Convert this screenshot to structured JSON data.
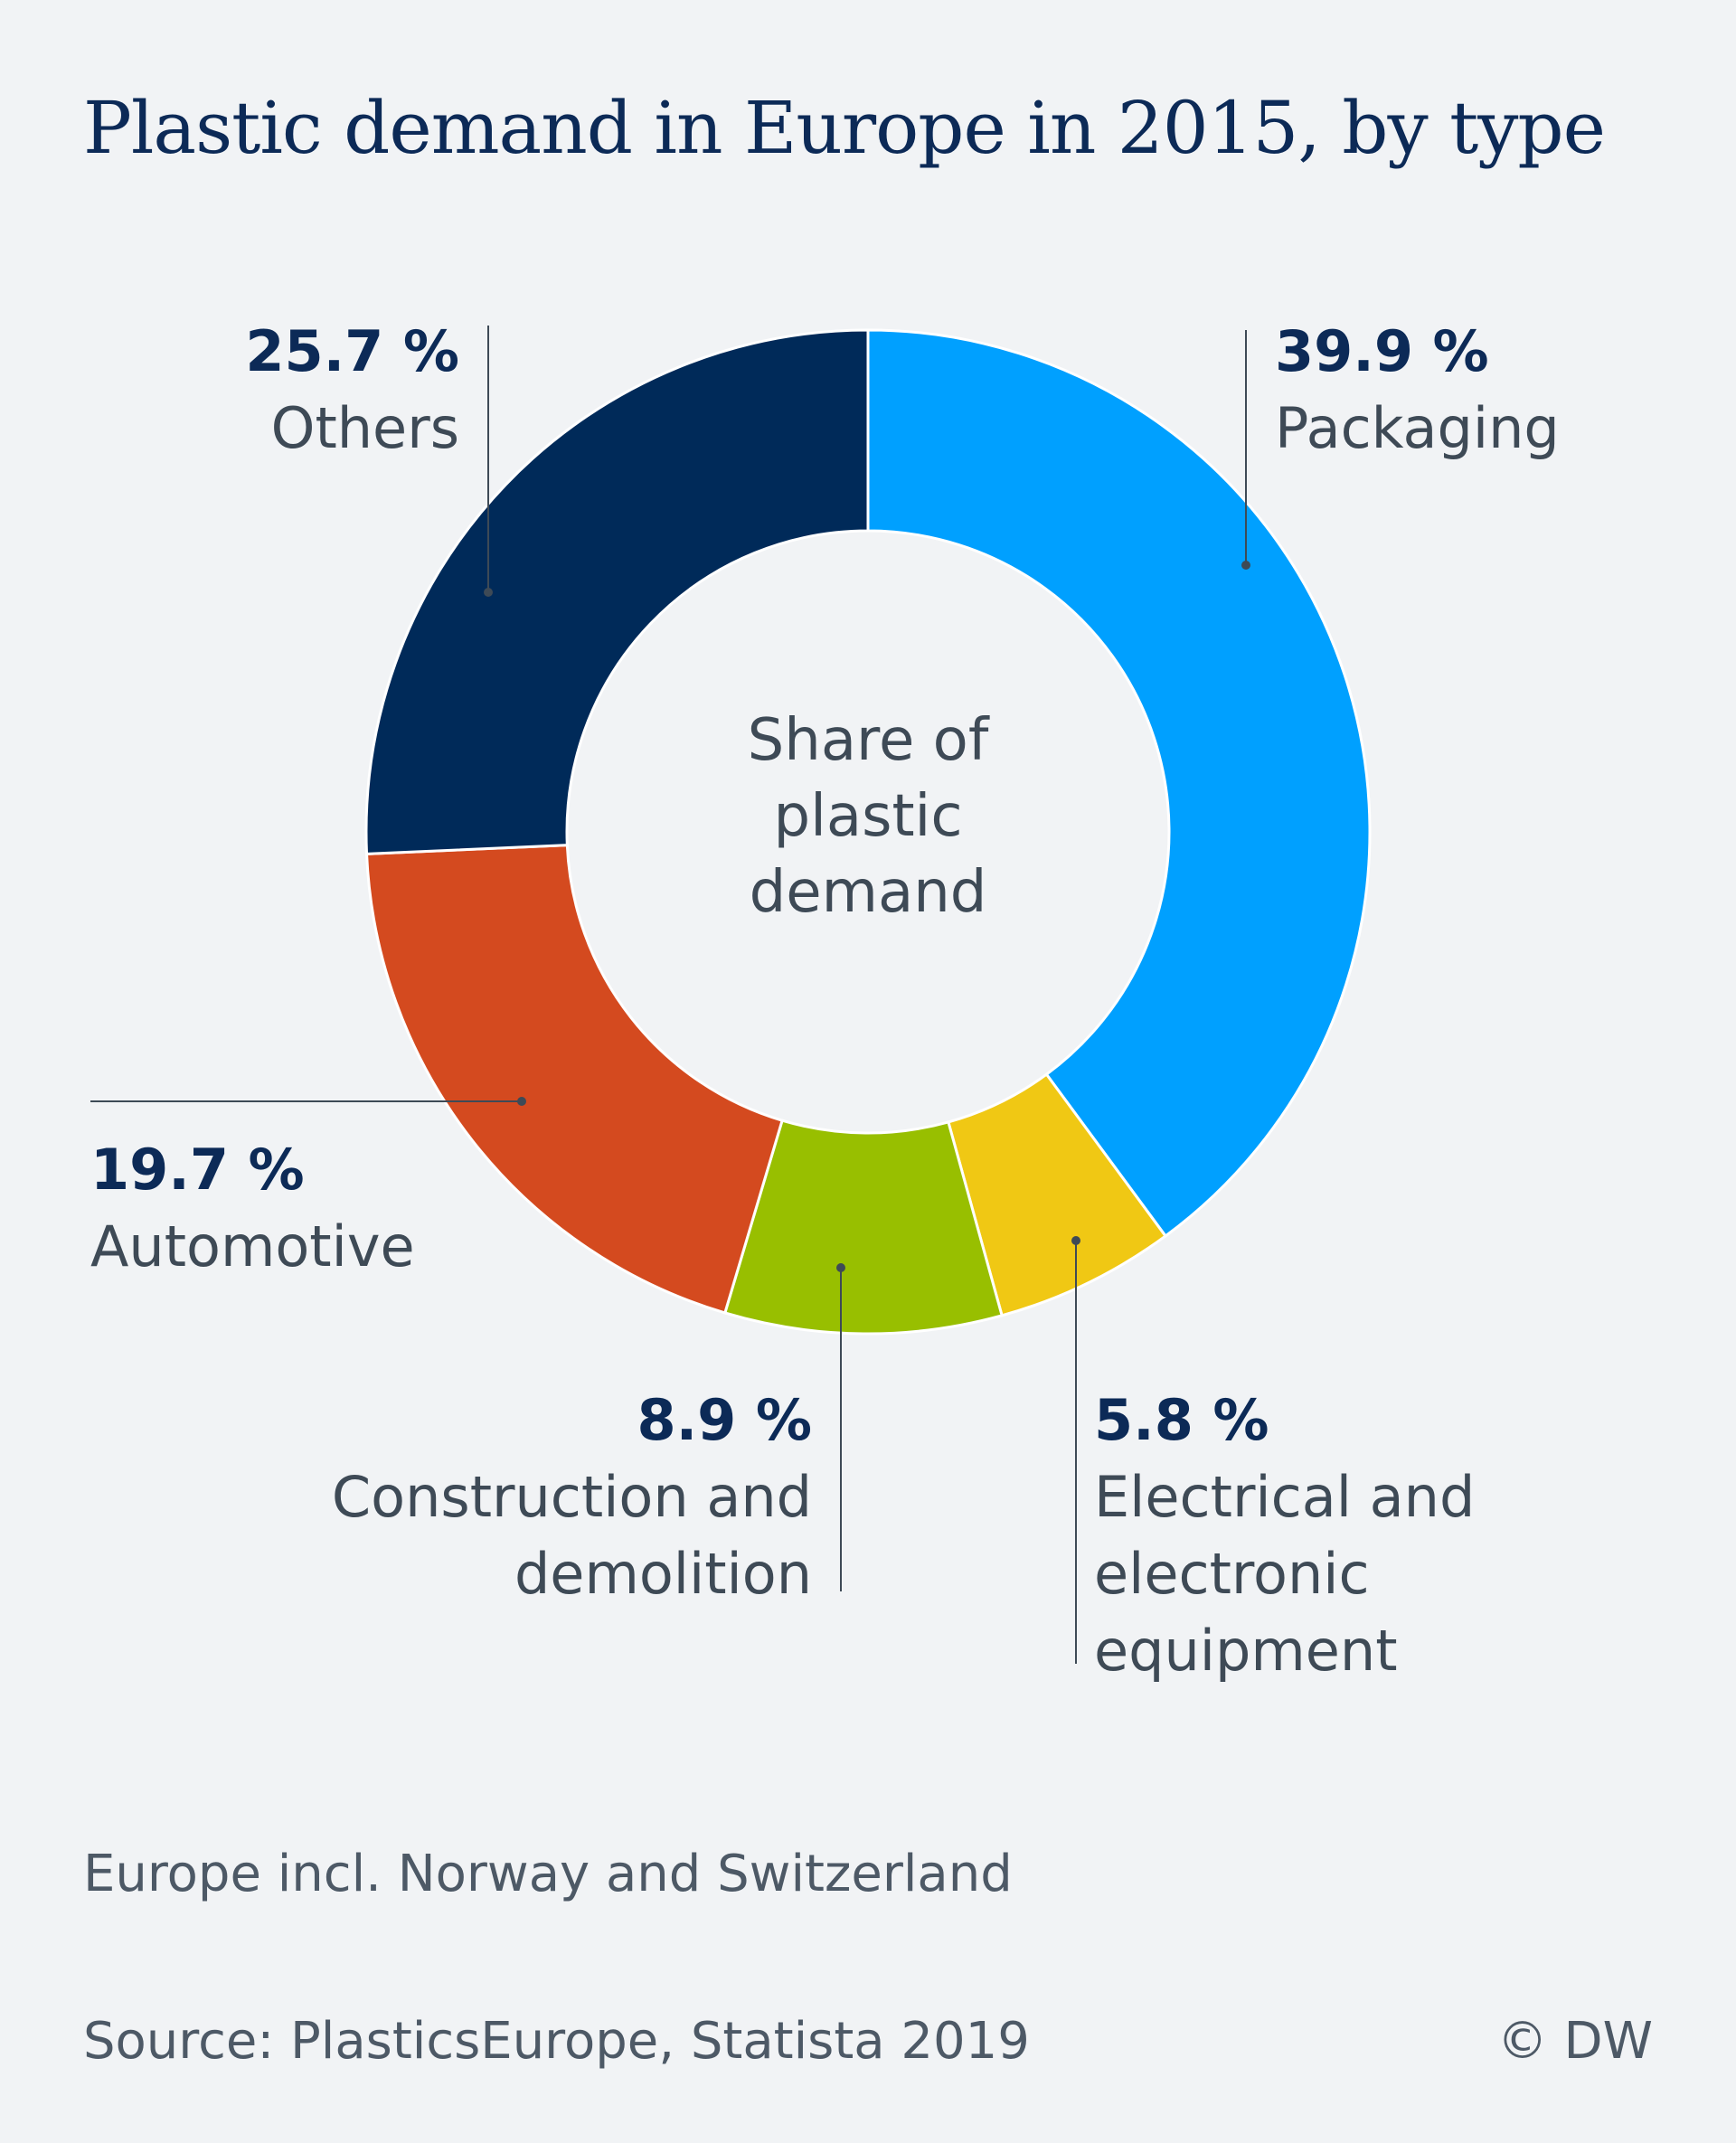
{
  "title": "Plastic demand in Europe in 2015, by type",
  "note": "Europe incl. Norway and Switzerland",
  "source": "Source: PlasticsEurope, Statista 2019",
  "credit": "© DW",
  "chart_data": {
    "type": "pie",
    "style": "donut",
    "center_label": [
      "Share of",
      "plastic",
      "demand"
    ],
    "unit": "%",
    "slices": [
      {
        "label": "Packaging",
        "value": 39.9,
        "value_label": "39.9 %",
        "label_lines": [
          "Packaging"
        ],
        "color": "#00a0ff"
      },
      {
        "label": "Electrical and electronic equipment",
        "value": 5.8,
        "value_label": "5.8 %",
        "label_lines": [
          "Electrical and",
          "electronic",
          "equipment"
        ],
        "color": "#f0c814"
      },
      {
        "label": "Construction and demolition",
        "value": 8.9,
        "value_label": "8.9 %",
        "label_lines": [
          "Construction and",
          "demolition"
        ],
        "color": "#98bf00"
      },
      {
        "label": "Automotive",
        "value": 19.7,
        "value_label": "19.7 %",
        "label_lines": [
          "Automotive"
        ],
        "color": "#d44a1f"
      },
      {
        "label": "Others",
        "value": 25.7,
        "value_label": "25.7 %",
        "label_lines": [
          "Others"
        ],
        "color": "#002a59"
      }
    ],
    "colors": {
      "value_text": "#0c2a57",
      "label_text": "#3e4a56",
      "leader": "#3e4a56"
    }
  }
}
